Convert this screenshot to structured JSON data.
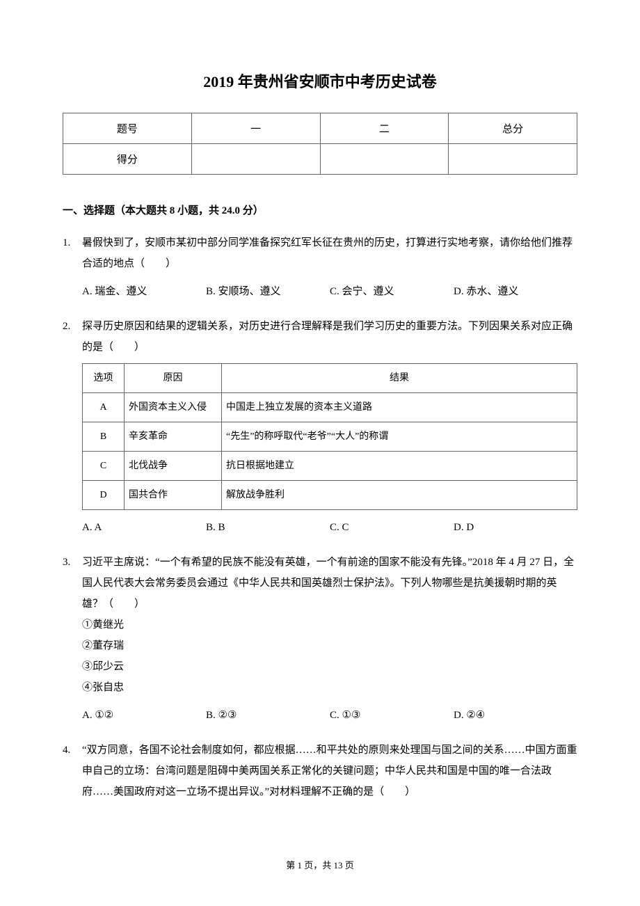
{
  "title": "2019 年贵州省安顺市中考历史试卷",
  "score_table": {
    "row1": [
      "题号",
      "一",
      "二",
      "总分"
    ],
    "row2": [
      "得分",
      "",
      "",
      ""
    ]
  },
  "section1_header": "一、选择题（本大题共 8 小题，共 24.0 分）",
  "q1": {
    "num": "1.",
    "text": "暑假快到了，安顺市某初中部分同学准备探究红军长征在贵州的历史，打算进行实地考察，请你给他们推荐合适的地点（　　）",
    "optA": "A. 瑞金、遵义",
    "optB": "B. 安顺场、遵义",
    "optC": "C. 会宁、遵义",
    "optD": "D. 赤水、遵义"
  },
  "q2": {
    "num": "2.",
    "text": "探寻历史原因和结果的逻辑关系，对历史进行合理解释是我们学习历史的重要方法。下列因果关系对应正确的是（　　）",
    "table": {
      "headers": [
        "选项",
        "原因",
        "结果"
      ],
      "rows": [
        [
          "A",
          "外国资本主义入侵",
          "中国走上独立发展的资本主义道路"
        ],
        [
          "B",
          "辛亥革命",
          "“先生”的称呼取代“老爷”“大人”的称谓"
        ],
        [
          "C",
          "北伐战争",
          "抗日根据地建立"
        ],
        [
          "D",
          "国共合作",
          "解放战争胜利"
        ]
      ]
    },
    "optA": "A. A",
    "optB": "B. B",
    "optC": "C. C",
    "optD": "D. D"
  },
  "q3": {
    "num": "3.",
    "text": "习近平主席说：“一个有希望的民族不能没有英雄，一个有前途的国家不能没有先锋。”2018 年 4 月 27 日，全国人民代表大会常务委员会通过《中华人民共和国英雄烈士保护法》。下列人物哪些是抗美援朝时期的英雄？（　　）",
    "items": [
      "①黄继光",
      "②董存瑞",
      "③邱少云",
      "④张自忠"
    ],
    "optA": "A. ①②",
    "optB": "B. ②③",
    "optC": "C. ①③",
    "optD": "D. ②④"
  },
  "q4": {
    "num": "4.",
    "text": "“双方同意，各国不论社会制度如何，都应根据……和平共处的原则来处理国与国之间的关系……中国方面重申自己的立场：台湾问题是阻碍中美两国关系正常化的关键问题；中华人民共和国是中国的唯一合法政府……美国政府对这一立场不提出异议。”对材料理解不正确的是（　　）"
  },
  "footer": "第 1 页，共 13 页"
}
